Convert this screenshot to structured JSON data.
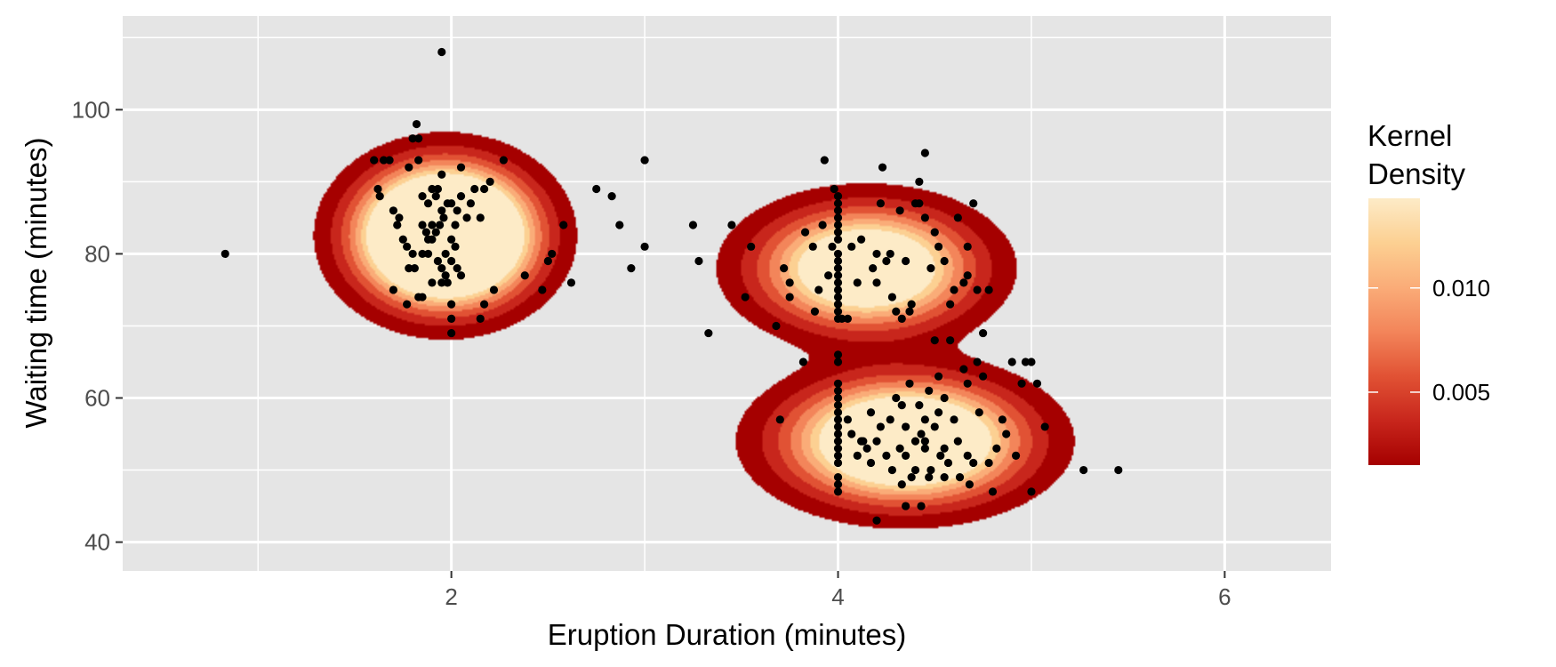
{
  "chart_data": {
    "type": "scatter",
    "xlabel": "Eruption Duration (minutes)",
    "ylabel": "Waiting time (minutes)",
    "xlim": [
      0.3,
      6.55
    ],
    "ylim": [
      36,
      113
    ],
    "xticks": [
      2,
      4,
      6
    ],
    "yticks": [
      40,
      60,
      80,
      100
    ],
    "grid": true,
    "background": "#e5e5e5",
    "overlay": "filled kernel density contours (7 bands)",
    "legend": {
      "title_lines": [
        "Kernel",
        "Density"
      ],
      "position": "right",
      "tick_values": [
        0.005,
        0.01
      ],
      "tick_labels": [
        "0.005",
        "0.010"
      ],
      "range": [
        0.0015,
        0.0143
      ]
    },
    "colors": {
      "density_scale": [
        "#a50000",
        "#c8261c",
        "#e15234",
        "#f3855a",
        "#faac78",
        "#fcd092",
        "#fdebc7"
      ],
      "points": "#000000"
    },
    "density_components": [
      {
        "x": 1.97,
        "y": 82.5,
        "sx": 0.26,
        "sy": 5.5,
        "w": 0.42
      },
      {
        "x": 4.15,
        "y": 78.0,
        "sx": 0.33,
        "sy": 5.0,
        "w": 0.25
      },
      {
        "x": 4.35,
        "y": 54.0,
        "sx": 0.36,
        "sy": 5.0,
        "w": 0.33
      }
    ],
    "points": [
      [
        0.83,
        80
      ],
      [
        1.95,
        108
      ],
      [
        1.6,
        93
      ],
      [
        1.65,
        93
      ],
      [
        1.68,
        93
      ],
      [
        1.62,
        89
      ],
      [
        1.63,
        88
      ],
      [
        1.7,
        86
      ],
      [
        1.72,
        84
      ],
      [
        1.73,
        85
      ],
      [
        1.75,
        82
      ],
      [
        1.77,
        81
      ],
      [
        1.8,
        80
      ],
      [
        1.78,
        78
      ],
      [
        1.81,
        78
      ],
      [
        1.7,
        75
      ],
      [
        1.77,
        73
      ],
      [
        1.83,
        74
      ],
      [
        1.85,
        74
      ],
      [
        1.82,
        98
      ],
      [
        1.8,
        96
      ],
      [
        1.83,
        96
      ],
      [
        1.78,
        92
      ],
      [
        1.83,
        93
      ],
      [
        1.85,
        88
      ],
      [
        1.9,
        89
      ],
      [
        1.88,
        87
      ],
      [
        1.92,
        88
      ],
      [
        1.95,
        91
      ],
      [
        1.93,
        89
      ],
      [
        1.85,
        84
      ],
      [
        1.87,
        83
      ],
      [
        1.9,
        84
      ],
      [
        1.92,
        83
      ],
      [
        1.94,
        84
      ],
      [
        1.96,
        85
      ],
      [
        1.95,
        86
      ],
      [
        1.98,
        87
      ],
      [
        2.0,
        87
      ],
      [
        1.97,
        80
      ],
      [
        1.93,
        79
      ],
      [
        1.95,
        78
      ],
      [
        1.97,
        77
      ],
      [
        2.0,
        79
      ],
      [
        2.02,
        81
      ],
      [
        2.03,
        78
      ],
      [
        2.05,
        77
      ],
      [
        1.98,
        76
      ],
      [
        1.95,
        76
      ],
      [
        1.9,
        76
      ],
      [
        1.88,
        80
      ],
      [
        1.85,
        80
      ],
      [
        1.88,
        82
      ],
      [
        1.9,
        82
      ],
      [
        2.0,
        82
      ],
      [
        2.02,
        84
      ],
      [
        2.03,
        86
      ],
      [
        2.05,
        88
      ],
      [
        2.08,
        85
      ],
      [
        2.1,
        87
      ],
      [
        2.12,
        89
      ],
      [
        2.15,
        85
      ],
      [
        2.17,
        89
      ],
      [
        2.2,
        90
      ],
      [
        2.05,
        92
      ],
      [
        2.0,
        73
      ],
      [
        2.0,
        71
      ],
      [
        2.0,
        69
      ],
      [
        2.15,
        71
      ],
      [
        2.17,
        73
      ],
      [
        2.22,
        75
      ],
      [
        2.27,
        93
      ],
      [
        2.38,
        77
      ],
      [
        2.47,
        75
      ],
      [
        2.5,
        79
      ],
      [
        2.52,
        80
      ],
      [
        2.58,
        84
      ],
      [
        2.62,
        76
      ],
      [
        2.75,
        89
      ],
      [
        2.83,
        88
      ],
      [
        2.87,
        84
      ],
      [
        2.93,
        78
      ],
      [
        3.0,
        81
      ],
      [
        3.0,
        93
      ],
      [
        3.25,
        84
      ],
      [
        3.28,
        79
      ],
      [
        3.33,
        69
      ],
      [
        3.45,
        84
      ],
      [
        3.52,
        74
      ],
      [
        3.55,
        81
      ],
      [
        3.68,
        70
      ],
      [
        3.7,
        57
      ],
      [
        3.72,
        78
      ],
      [
        3.75,
        76
      ],
      [
        3.75,
        74
      ],
      [
        3.82,
        65
      ],
      [
        3.83,
        83
      ],
      [
        3.87,
        81
      ],
      [
        3.88,
        72
      ],
      [
        3.9,
        75
      ],
      [
        3.92,
        84
      ],
      [
        3.93,
        93
      ],
      [
        3.95,
        77
      ],
      [
        3.97,
        81
      ],
      [
        3.98,
        89
      ],
      [
        4.0,
        88
      ],
      [
        4.0,
        86
      ],
      [
        4.0,
        84
      ],
      [
        4.0,
        82
      ],
      [
        4.0,
        80
      ],
      [
        4.0,
        78
      ],
      [
        4.0,
        76
      ],
      [
        4.0,
        74
      ],
      [
        4.0,
        72
      ],
      [
        4.0,
        87
      ],
      [
        4.0,
        85
      ],
      [
        4.0,
        83
      ],
      [
        4.0,
        79
      ],
      [
        4.0,
        77
      ],
      [
        4.0,
        75
      ],
      [
        4.0,
        73
      ],
      [
        4.0,
        71
      ],
      [
        4.02,
        71
      ],
      [
        4.05,
        71
      ],
      [
        4.07,
        81
      ],
      [
        4.1,
        76
      ],
      [
        4.12,
        82
      ],
      [
        4.18,
        78
      ],
      [
        4.2,
        76
      ],
      [
        4.2,
        80
      ],
      [
        4.22,
        87
      ],
      [
        4.23,
        92
      ],
      [
        4.25,
        79
      ],
      [
        4.27,
        80
      ],
      [
        4.28,
        74
      ],
      [
        4.3,
        72
      ],
      [
        4.32,
        86
      ],
      [
        4.33,
        71
      ],
      [
        4.35,
        79
      ],
      [
        4.37,
        72
      ],
      [
        4.38,
        73
      ],
      [
        4.4,
        87
      ],
      [
        4.42,
        87
      ],
      [
        4.42,
        90
      ],
      [
        4.45,
        94
      ],
      [
        4.45,
        85
      ],
      [
        4.48,
        78
      ],
      [
        4.5,
        83
      ],
      [
        4.52,
        81
      ],
      [
        4.55,
        79
      ],
      [
        4.58,
        73
      ],
      [
        4.6,
        75
      ],
      [
        4.62,
        85
      ],
      [
        4.65,
        76
      ],
      [
        4.67,
        81
      ],
      [
        4.67,
        77
      ],
      [
        4.7,
        87
      ],
      [
        4.72,
        75
      ],
      [
        4.75,
        69
      ],
      [
        4.78,
        75
      ],
      [
        4.0,
        66
      ],
      [
        4.0,
        65
      ],
      [
        4.0,
        62
      ],
      [
        4.0,
        61
      ],
      [
        4.0,
        60
      ],
      [
        4.0,
        59
      ],
      [
        4.0,
        58
      ],
      [
        4.0,
        57
      ],
      [
        4.0,
        56
      ],
      [
        4.0,
        55
      ],
      [
        4.0,
        54
      ],
      [
        4.0,
        53
      ],
      [
        4.0,
        52
      ],
      [
        4.0,
        51
      ],
      [
        4.0,
        49
      ],
      [
        4.0,
        48
      ],
      [
        4.0,
        47
      ],
      [
        4.05,
        57
      ],
      [
        4.07,
        55
      ],
      [
        4.1,
        52
      ],
      [
        4.12,
        54
      ],
      [
        4.13,
        54
      ],
      [
        4.15,
        53
      ],
      [
        4.17,
        51
      ],
      [
        4.17,
        58
      ],
      [
        4.2,
        54
      ],
      [
        4.22,
        56
      ],
      [
        4.25,
        52
      ],
      [
        4.27,
        57
      ],
      [
        4.28,
        50
      ],
      [
        4.3,
        60
      ],
      [
        4.32,
        53
      ],
      [
        4.33,
        59
      ],
      [
        4.33,
        48
      ],
      [
        4.35,
        52
      ],
      [
        4.35,
        56
      ],
      [
        4.37,
        62
      ],
      [
        4.38,
        49
      ],
      [
        4.4,
        54
      ],
      [
        4.4,
        50
      ],
      [
        4.42,
        59
      ],
      [
        4.43,
        55
      ],
      [
        4.43,
        45
      ],
      [
        4.45,
        57
      ],
      [
        4.45,
        53
      ],
      [
        4.47,
        61
      ],
      [
        4.47,
        49
      ],
      [
        4.48,
        50
      ],
      [
        4.5,
        56
      ],
      [
        4.5,
        68
      ],
      [
        4.52,
        63
      ],
      [
        4.52,
        58
      ],
      [
        4.53,
        52
      ],
      [
        4.55,
        60
      ],
      [
        4.55,
        53
      ],
      [
        4.57,
        51
      ],
      [
        4.58,
        68
      ],
      [
        4.6,
        57
      ],
      [
        4.62,
        54
      ],
      [
        4.63,
        49
      ],
      [
        4.65,
        64
      ],
      [
        4.67,
        62
      ],
      [
        4.67,
        52
      ],
      [
        4.68,
        48
      ],
      [
        4.7,
        51
      ],
      [
        4.72,
        65
      ],
      [
        4.73,
        58
      ],
      [
        4.75,
        63
      ],
      [
        4.78,
        51
      ],
      [
        4.8,
        47
      ],
      [
        4.82,
        53
      ],
      [
        4.85,
        57
      ],
      [
        4.87,
        55
      ],
      [
        4.9,
        65
      ],
      [
        4.92,
        52
      ],
      [
        4.95,
        62
      ],
      [
        4.97,
        65
      ],
      [
        5.0,
        65
      ],
      [
        5.0,
        47
      ],
      [
        5.03,
        62
      ],
      [
        5.07,
        56
      ],
      [
        5.27,
        50
      ],
      [
        5.45,
        50
      ],
      [
        4.2,
        43
      ],
      [
        4.35,
        45
      ],
      [
        4.45,
        54
      ],
      [
        4.55,
        49
      ]
    ]
  }
}
